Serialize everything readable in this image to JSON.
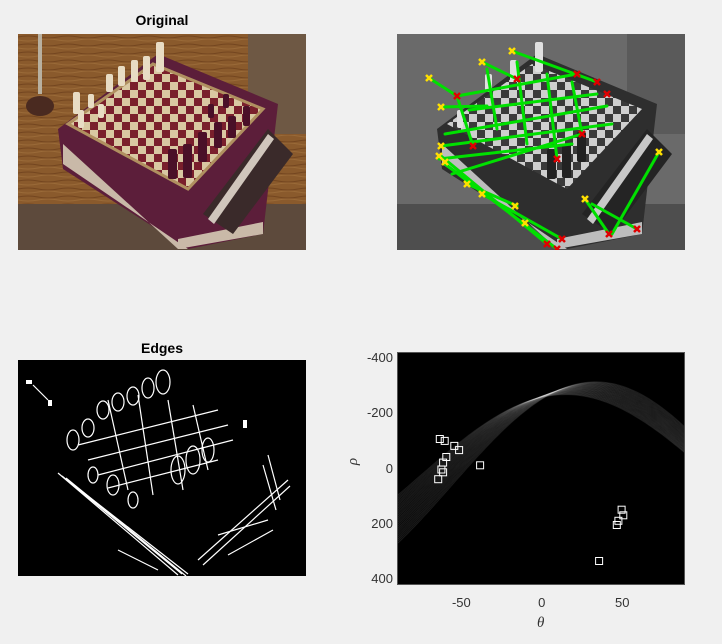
{
  "titles": {
    "original": "Original",
    "overlay": "",
    "edges": "Edges",
    "hough": ""
  },
  "hough": {
    "xlabel": "θ",
    "ylabel": "ρ",
    "x_ticks": [
      "-50",
      "0",
      "50"
    ],
    "y_ticks": [
      "-400",
      "-200",
      "0",
      "200",
      "400"
    ],
    "peak_color": "#ffffff",
    "background": "#000000"
  },
  "overlay": {
    "line_color": "#00e000",
    "start_marker_color": "#ffe000",
    "end_marker_color": "#e00000"
  },
  "chart_data": {
    "type": "scatter",
    "title": "",
    "xlabel": "θ",
    "ylabel": "ρ",
    "xlim": [
      -90,
      89
    ],
    "ylim": [
      -420,
      420
    ],
    "y_reversed": true,
    "series": [
      {
        "name": "",
        "points": [
          [
            -64,
            -110
          ],
          [
            -61,
            -103
          ],
          [
            -55,
            -85
          ],
          [
            -52,
            -70
          ],
          [
            -60,
            -45
          ],
          [
            -62,
            -25
          ],
          [
            -63,
            0
          ],
          [
            -62,
            10
          ],
          [
            -65,
            35
          ],
          [
            -39,
            -15
          ],
          [
            49,
            145
          ],
          [
            50,
            165
          ],
          [
            47,
            185
          ],
          [
            46,
            200
          ],
          [
            35,
            330
          ]
        ]
      }
    ]
  }
}
